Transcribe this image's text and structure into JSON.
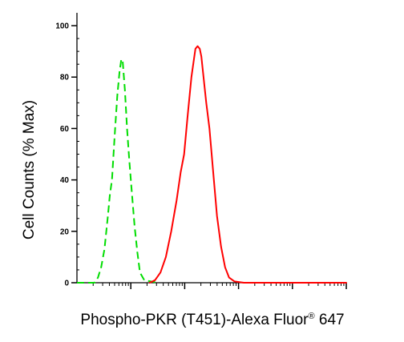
{
  "chart_data": {
    "type": "line",
    "title": "",
    "xlabel": {
      "main": "Phospho-PKR (T451)-Alexa Fluor",
      "mark": "®",
      "tail": " 647"
    },
    "ylabel": "Cell Counts (% Max)",
    "ylim": [
      0,
      105
    ],
    "yticks": [
      0,
      20,
      40,
      60,
      80,
      100
    ],
    "x_scale": "log",
    "x_ticks_labeled": false,
    "grid": false,
    "legend": "none",
    "series": [
      {
        "color": "#00dd00",
        "line_style": "dashed",
        "points": [
          [
            0.0,
            0
          ],
          [
            0.02,
            0
          ],
          [
            0.065,
            0
          ],
          [
            0.078,
            2
          ],
          [
            0.09,
            6
          ],
          [
            0.102,
            13
          ],
          [
            0.115,
            26
          ],
          [
            0.122,
            34
          ],
          [
            0.13,
            40
          ],
          [
            0.14,
            57
          ],
          [
            0.15,
            73
          ],
          [
            0.158,
            82
          ],
          [
            0.165,
            87
          ],
          [
            0.17,
            86
          ],
          [
            0.178,
            75
          ],
          [
            0.186,
            60
          ],
          [
            0.194,
            48
          ],
          [
            0.204,
            35
          ],
          [
            0.214,
            22
          ],
          [
            0.224,
            12
          ],
          [
            0.234,
            4
          ],
          [
            0.25,
            1
          ],
          [
            0.3,
            0
          ]
        ]
      },
      {
        "color": "#ff0000",
        "line_style": "solid",
        "points": [
          [
            0.27,
            0
          ],
          [
            0.29,
            1
          ],
          [
            0.31,
            4
          ],
          [
            0.33,
            10
          ],
          [
            0.35,
            20
          ],
          [
            0.37,
            32
          ],
          [
            0.385,
            43
          ],
          [
            0.398,
            50
          ],
          [
            0.41,
            64
          ],
          [
            0.425,
            80
          ],
          [
            0.44,
            91
          ],
          [
            0.448,
            92
          ],
          [
            0.456,
            91
          ],
          [
            0.462,
            88
          ],
          [
            0.47,
            80
          ],
          [
            0.48,
            70
          ],
          [
            0.492,
            60
          ],
          [
            0.505,
            44
          ],
          [
            0.52,
            26
          ],
          [
            0.535,
            14
          ],
          [
            0.55,
            6
          ],
          [
            0.565,
            2
          ],
          [
            0.585,
            0.5
          ],
          [
            0.62,
            0
          ],
          [
            0.68,
            0
          ],
          [
            0.8,
            0
          ],
          [
            1.0,
            0
          ]
        ]
      }
    ]
  },
  "colors": {
    "axis": "#000000",
    "background": "#ffffff"
  }
}
